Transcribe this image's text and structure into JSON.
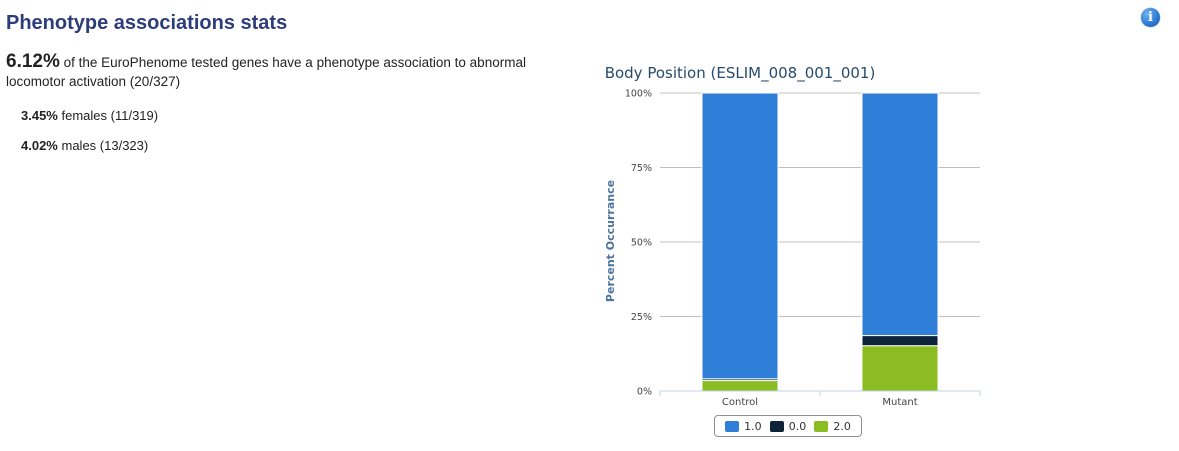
{
  "section": {
    "title": "Phenotype associations stats"
  },
  "summary": {
    "percent": "6.12%",
    "text": "of the EuroPhenome tested genes have a phenotype association to abnormal locomotor activation (20/327)"
  },
  "stats": [
    {
      "percent": "3.45%",
      "text": "females (11/319)"
    },
    {
      "percent": "4.02%",
      "text": "males (13/323)"
    }
  ],
  "info_icon": {
    "glyph": "i",
    "icon": "info-icon"
  },
  "chart_data": {
    "type": "bar",
    "stacked": true,
    "title": "Body Position (ESLIM_008_001_001)",
    "xlabel": "",
    "ylabel": "Percent Occurrance",
    "ylim": [
      0,
      100
    ],
    "yticks": [
      "0%",
      "25%",
      "50%",
      "75%",
      "100%"
    ],
    "grid": true,
    "legend_position": "bottom-center",
    "categories": [
      "Control",
      "Mutant"
    ],
    "series": [
      {
        "name": "1.0",
        "color": "#2f7ed8",
        "values": [
          95.9,
          81.4
        ]
      },
      {
        "name": "0.0",
        "color": "#0d233a",
        "values": [
          0.6,
          3.4
        ]
      },
      {
        "name": "2.0",
        "color": "#8bbc21",
        "values": [
          3.5,
          15.2
        ]
      }
    ]
  }
}
